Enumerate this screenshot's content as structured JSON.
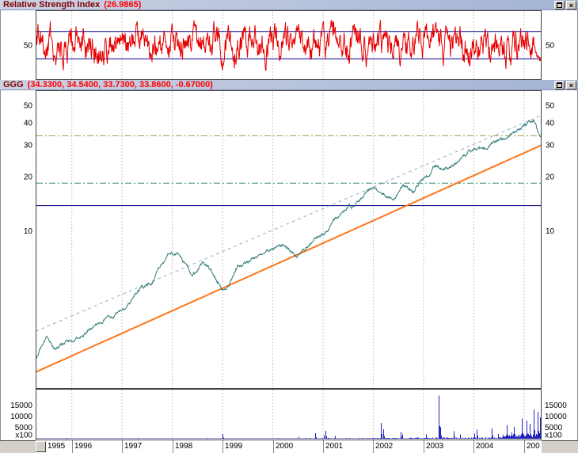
{
  "rsi_panel": {
    "title": "Relative Strength Index",
    "value": "(26.9865)",
    "y_axis_label": "50",
    "upper_guide": 70,
    "lower_guide": 30
  },
  "price_panel": {
    "title": "GGG",
    "value": "(34.3300, 34.5400, 33.7300, 33.8600, -0.67000)",
    "y_axis_labels": [
      50,
      40,
      30,
      20,
      10
    ]
  },
  "volume_panel": {
    "y_axis_labels": [
      15000,
      10000,
      5000
    ],
    "multiplier_label": "x100"
  },
  "time_axis": {
    "year_labels": [
      "1995",
      "1996",
      "1997",
      "1998",
      "1999",
      "2000",
      "2001",
      "2002",
      "2003",
      "2004",
      "200"
    ],
    "start_year_frac": 1995.28,
    "end_year_frac": 2005.35
  },
  "titlebar": {
    "close_glyph": "×"
  },
  "colors": {
    "titlebar_text": "#800000",
    "titlebar_value": "#ff0000",
    "rsi_line": "#e80000",
    "guide_line": "#000090",
    "price_line": "#2f7c78",
    "support_line": "#ff7519",
    "channel_line": "#99a8c8",
    "hline_navy": "#000080",
    "hline_green": "#2f8a70",
    "hline_olive": "#a8a040",
    "volume_bar": "#2222bb",
    "grid": "#c8c8c8",
    "frame": "#404040"
  },
  "seed": 98127,
  "chart_data": [
    {
      "type": "line",
      "name": "Relative Strength Index",
      "ylim": [
        0,
        100
      ],
      "guides": [
        70,
        30
      ],
      "last_value": 26.9865,
      "color": "#e80000",
      "x_range_years": [
        1995.28,
        2005.35
      ]
    },
    {
      "type": "line",
      "name": "GGG daily close",
      "scale": "log",
      "ylim": [
        1.31,
        60
      ],
      "x_anchors_years": [
        1995.28,
        1995.5,
        1995.65,
        1996.0,
        1996.4,
        1997.0,
        1997.3,
        1997.6,
        1997.95,
        1998.15,
        1998.4,
        1998.6,
        1998.8,
        1999.05,
        1999.3,
        1999.6,
        1999.9,
        2000.2,
        2000.5,
        2000.8,
        2001.0,
        2001.3,
        2001.6,
        2001.95,
        2002.2,
        2002.4,
        2002.6,
        2002.8,
        2003.0,
        2003.25,
        2003.5,
        2003.75,
        2004.0,
        2004.3,
        2004.6,
        2004.85,
        2005.05,
        2005.2,
        2005.28,
        2005.35
      ],
      "value_anchors": [
        1.9,
        2.6,
        2.2,
        2.5,
        2.9,
        3.6,
        4.6,
        5.2,
        7.6,
        7.2,
        5.6,
        6.6,
        5.8,
        4.7,
        6.2,
        7.0,
        7.9,
        8.3,
        7.3,
        8.6,
        9.7,
        11.8,
        13.8,
        17.6,
        15.8,
        14.6,
        17.6,
        16.8,
        19.5,
        23.0,
        22.0,
        26.0,
        28.5,
        29.5,
        33.0,
        36.0,
        39.0,
        41.5,
        36.0,
        33.86
      ],
      "last_ohlc": {
        "open": 34.33,
        "high": 34.54,
        "low": 33.73,
        "close": 33.86,
        "change": -0.67
      },
      "trendlines": [
        {
          "name": "support",
          "color": "#ff7519",
          "style": "solid",
          "width": 2,
          "from_year": 1995.28,
          "from_value": 1.63,
          "to_year": 2005.35,
          "to_value": 30
        },
        {
          "name": "channel",
          "color": "#99a8c8",
          "style": "dashed",
          "width": 1,
          "from_year": 1995.28,
          "from_value": 2.75,
          "to_year": 2005.35,
          "to_value": 44
        }
      ],
      "hlines": [
        {
          "value": 13.8,
          "color": "#000080",
          "style": "solid"
        },
        {
          "value": 18.4,
          "color": "#2f8a70",
          "style": "dashdot"
        },
        {
          "value": 33.8,
          "color": "#a8a040",
          "style": "dashdot"
        }
      ]
    },
    {
      "type": "bar",
      "name": "Volume",
      "unit_multiplier": 100,
      "ylim": [
        0,
        21000
      ],
      "color": "#2222bb",
      "major_spikes": [
        {
          "year": 1999.0,
          "value": 2300
        },
        {
          "year": 2000.85,
          "value": 2600
        },
        {
          "year": 2001.05,
          "value": 3600
        },
        {
          "year": 2002.15,
          "value": 7200
        },
        {
          "year": 2002.2,
          "value": 4300
        },
        {
          "year": 2002.55,
          "value": 3100
        },
        {
          "year": 2003.3,
          "value": 19500
        },
        {
          "year": 2003.33,
          "value": 5200
        },
        {
          "year": 2003.6,
          "value": 3400
        },
        {
          "year": 2004.05,
          "value": 4200
        },
        {
          "year": 2004.35,
          "value": 4800
        },
        {
          "year": 2004.65,
          "value": 6200
        },
        {
          "year": 2004.8,
          "value": 5400
        },
        {
          "year": 2004.95,
          "value": 9200
        },
        {
          "year": 2005.05,
          "value": 8200
        },
        {
          "year": 2005.12,
          "value": 6800
        },
        {
          "year": 2005.2,
          "value": 13200
        },
        {
          "year": 2005.27,
          "value": 12200
        },
        {
          "year": 2005.32,
          "value": 9800
        }
      ]
    }
  ]
}
